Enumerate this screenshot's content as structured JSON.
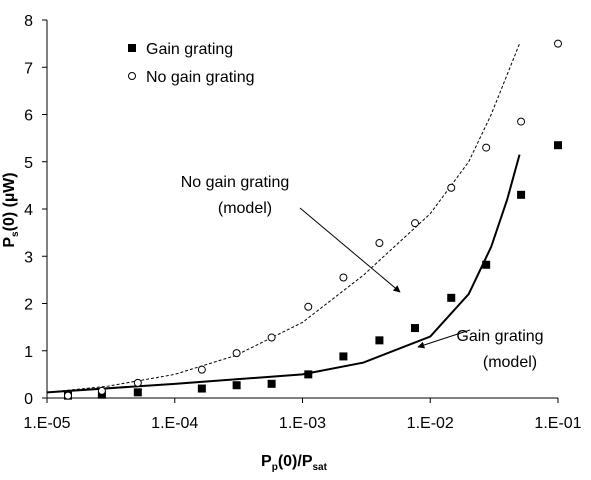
{
  "chart_data": {
    "type": "scatter",
    "xlabel": [
      "P",
      "p",
      "(0)/P",
      "sat"
    ],
    "ylabel": [
      "P",
      "s",
      "(0) (µW)"
    ],
    "xscale": "log",
    "xlim": [
      1e-05,
      0.1
    ],
    "ylim": [
      0,
      8
    ],
    "xticks": [
      {
        "value": 1e-05,
        "label": "1.E-05"
      },
      {
        "value": 0.0001,
        "label": "1.E-04"
      },
      {
        "value": 0.001,
        "label": "1.E-03"
      },
      {
        "value": 0.01,
        "label": "1.E-02"
      },
      {
        "value": 0.1,
        "label": "1.E-01"
      }
    ],
    "yticks": [
      0,
      1,
      2,
      3,
      4,
      5,
      6,
      7,
      8
    ],
    "legend": "upper left",
    "series": [
      {
        "name": "Gain grating",
        "marker": "square",
        "color": "#000000",
        "x": [
          1.46e-05,
          2.69e-05,
          5.14e-05,
          0.000163,
          0.000305,
          0.000573,
          0.00111,
          0.00209,
          0.004,
          0.0076,
          0.0146,
          0.0274,
          0.0514,
          0.1
        ],
        "values": [
          0.05,
          0.07,
          0.12,
          0.2,
          0.27,
          0.3,
          0.5,
          0.88,
          1.22,
          1.48,
          2.12,
          2.82,
          4.3,
          5.35
        ]
      },
      {
        "name": "No gain grating",
        "marker": "circle",
        "color": "#000000",
        "x": [
          1.46e-05,
          2.69e-05,
          5.14e-05,
          0.000163,
          0.000305,
          0.000573,
          0.00111,
          0.00209,
          0.004,
          0.0076,
          0.0146,
          0.0274,
          0.0514,
          0.1
        ],
        "values": [
          0.05,
          0.15,
          0.32,
          0.6,
          0.95,
          1.28,
          1.93,
          2.55,
          3.28,
          3.7,
          4.45,
          5.3,
          5.85,
          7.5
        ]
      }
    ],
    "models": [
      {
        "label": [
          "No gain grating",
          "(model)"
        ],
        "style": "dashed",
        "color": "#000000",
        "x": [
          1e-05,
          3e-05,
          0.0001,
          0.0003,
          0.001,
          0.003,
          0.01,
          0.02,
          0.03,
          0.05
        ],
        "values": [
          0.12,
          0.25,
          0.5,
          0.9,
          1.6,
          2.6,
          3.9,
          5.0,
          6.0,
          7.5
        ]
      },
      {
        "label": [
          "Gain grating",
          "(model)"
        ],
        "style": "solid",
        "color": "#000000",
        "x": [
          1e-05,
          0.0001,
          0.001,
          0.003,
          0.01,
          0.02,
          0.03,
          0.04,
          0.05
        ],
        "values": [
          0.12,
          0.3,
          0.5,
          0.75,
          1.3,
          2.2,
          3.2,
          4.2,
          5.15
        ]
      }
    ]
  }
}
